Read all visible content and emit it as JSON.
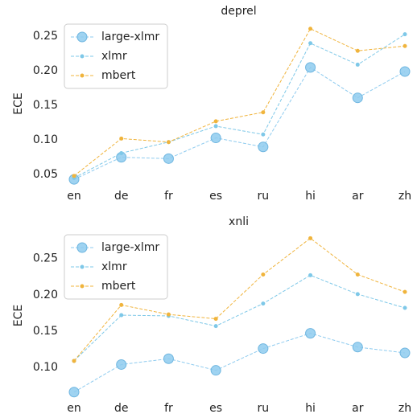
{
  "chart_data": [
    {
      "type": "line",
      "title": "deprel",
      "y_label": "ECE",
      "categories": [
        "en",
        "de",
        "fr",
        "es",
        "ru",
        "hi",
        "ar",
        "zh"
      ],
      "series": [
        {
          "name": "large-xlmr",
          "color": "#8ecbef",
          "values": [
            0.043,
            0.075,
            0.073,
            0.103,
            0.09,
            0.205,
            0.161,
            0.199
          ]
        },
        {
          "name": "xlmr",
          "color": "#7ec8e8",
          "values": [
            0.045,
            0.081,
            0.097,
            0.12,
            0.108,
            0.24,
            0.209,
            0.253
          ]
        },
        {
          "name": "mbert",
          "color": "#f0b43c",
          "values": [
            0.048,
            0.102,
            0.097,
            0.127,
            0.14,
            0.261,
            0.229,
            0.236
          ]
        }
      ],
      "ylim": [
        0.035,
        0.27
      ],
      "yticks": [
        0.05,
        {
          "value": 0.1,
          "label": "0.10"
        },
        0.15,
        {
          "value": 0.2,
          "label": "0.20"
        },
        0.25
      ],
      "legend": "upper left"
    },
    {
      "type": "line",
      "title": "xnli",
      "y_label": "ECE",
      "categories": [
        "en",
        "de",
        "fr",
        "es",
        "ru",
        "hi",
        "ar",
        "zh"
      ],
      "series": [
        {
          "name": "large-xlmr",
          "color": "#8ecbef",
          "values": [
            0.066,
            0.104,
            0.112,
            0.096,
            0.126,
            0.147,
            0.128,
            0.12
          ]
        },
        {
          "name": "xlmr",
          "color": "#7ec8e8",
          "values": [
            0.109,
            0.172,
            0.171,
            0.157,
            0.188,
            0.227,
            0.201,
            0.182
          ]
        },
        {
          "name": "mbert",
          "color": "#f0b43c",
          "values": [
            0.109,
            0.186,
            0.173,
            0.167,
            0.228,
            0.278,
            0.228,
            0.204
          ]
        }
      ],
      "ylim": [
        0.058,
        0.285
      ],
      "yticks": [
        {
          "value": 0.1,
          "label": "0.10"
        },
        0.15,
        {
          "value": 0.2,
          "label": "0.20"
        },
        0.25
      ],
      "legend": "upper left"
    }
  ]
}
